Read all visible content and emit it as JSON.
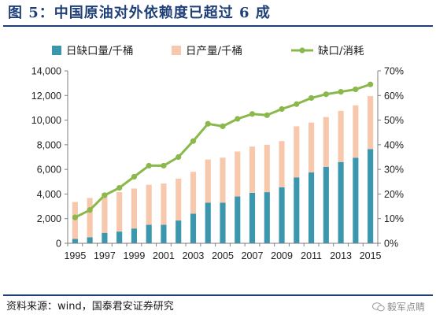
{
  "header": {
    "title": "图 5：中国原油对外依赖度已超过 6 成"
  },
  "footer": {
    "source": "资料来源：wind，国泰君安证券研究",
    "watermark": "毅军点睛",
    "watermark_icon": "wechat-bubble-icon"
  },
  "colors": {
    "title": "#1e3f78",
    "import_bar": "#3a97ad",
    "production_bar": "#f8c8ac",
    "dependency_line": "#8ab84a"
  },
  "chart_data": {
    "type": "bar",
    "stacked": true,
    "title": "",
    "xlabel": "",
    "ylabel": "",
    "y2label": "",
    "x": [
      1995,
      1996,
      1997,
      1998,
      1999,
      2000,
      2001,
      2002,
      2003,
      2004,
      2005,
      2006,
      2007,
      2008,
      2009,
      2010,
      2011,
      2012,
      2013,
      2014,
      2015
    ],
    "x_tick_labels": [
      "1995",
      "1997",
      "1999",
      "2001",
      "2003",
      "2005",
      "2007",
      "2009",
      "2011",
      "2013",
      "2015"
    ],
    "ylim": [
      0,
      14000
    ],
    "y_ticks": [
      0,
      2000,
      4000,
      6000,
      8000,
      10000,
      12000,
      14000
    ],
    "y_tick_labels": [
      "0",
      "2,000",
      "4,000",
      "6,000",
      "8,000",
      "10,000",
      "12,000",
      "14,000"
    ],
    "y2lim": [
      0,
      70
    ],
    "y2_ticks": [
      0,
      10,
      20,
      30,
      40,
      50,
      60,
      70
    ],
    "y2_tick_labels": [
      "0%",
      "10%",
      "20%",
      "30%",
      "40%",
      "50%",
      "60%",
      "70%"
    ],
    "grid": false,
    "legend_position": "top",
    "series": [
      {
        "name": "日缺口量/千桶",
        "type": "bar",
        "axis": "left",
        "values": [
          350,
          480,
          850,
          950,
          1200,
          1500,
          1500,
          1850,
          2400,
          3300,
          3300,
          3800,
          4100,
          4150,
          4550,
          5350,
          5750,
          6200,
          6600,
          6950,
          7650
        ]
      },
      {
        "name": "日产量/千桶",
        "type": "bar",
        "axis": "left",
        "values": [
          3000,
          3200,
          3250,
          3200,
          3250,
          3250,
          3350,
          3400,
          3400,
          3500,
          3650,
          3650,
          3750,
          3850,
          3750,
          4150,
          4050,
          4050,
          4150,
          4250,
          4300
        ]
      },
      {
        "name": "缺口/消耗",
        "type": "line",
        "axis": "right",
        "unit": "%",
        "values": [
          10.5,
          13.5,
          19.5,
          22.5,
          27.0,
          31.5,
          31.5,
          35.0,
          41.5,
          48.5,
          47.5,
          50.5,
          52.5,
          52.0,
          54.5,
          56.5,
          59.0,
          60.5,
          61.5,
          62.5,
          64.5
        ]
      }
    ]
  }
}
